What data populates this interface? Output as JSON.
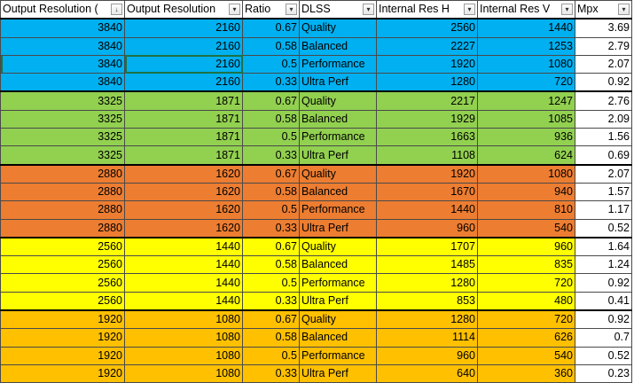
{
  "columns": [
    {
      "label": "Output Resolution (",
      "filter": "sort-descending-filter-icon",
      "glyph": "↓"
    },
    {
      "label": "Output Resolution",
      "filter": "filter-dropdown-icon",
      "glyph": "▾"
    },
    {
      "label": "Ratio",
      "filter": "filter-dropdown-icon",
      "glyph": "▾"
    },
    {
      "label": "DLSS",
      "filter": "filter-dropdown-icon",
      "glyph": "▾"
    },
    {
      "label": "Internal Res H",
      "filter": "filter-dropdown-icon",
      "glyph": "▾"
    },
    {
      "label": "Internal Res V",
      "filter": "filter-dropdown-icon",
      "glyph": "▾"
    },
    {
      "label": "Mpx",
      "filter": "filter-dropdown-icon",
      "glyph": "▾"
    }
  ],
  "colors": {
    "blue": "#00b0f0",
    "green": "#92d050",
    "dark_orange": "#ed7d31",
    "yellow": "#ffff00",
    "orange": "#ffc000",
    "mpx_bg": "#ffffff"
  },
  "rows": [
    {
      "color": "blue",
      "cells": [
        "3840",
        "2160",
        "0.67",
        "Quality",
        "2560",
        "1440",
        "3.69"
      ]
    },
    {
      "color": "blue",
      "cells": [
        "3840",
        "2160",
        "0.58",
        "Balanced",
        "2227",
        "1253",
        "2.79"
      ]
    },
    {
      "color": "blue",
      "cells": [
        "3840",
        "2160",
        "0.5",
        "Performance",
        "1920",
        "1080",
        "2.07"
      ],
      "selected_col": 1
    },
    {
      "color": "blue",
      "cells": [
        "3840",
        "2160",
        "0.33",
        "Ultra Perf",
        "1280",
        "720",
        "0.92"
      ]
    },
    {
      "color": "green",
      "cells": [
        "3325",
        "1871",
        "0.67",
        "Quality",
        "2217",
        "1247",
        "2.76"
      ]
    },
    {
      "color": "green",
      "cells": [
        "3325",
        "1871",
        "0.58",
        "Balanced",
        "1929",
        "1085",
        "2.09"
      ]
    },
    {
      "color": "green",
      "cells": [
        "3325",
        "1871",
        "0.5",
        "Performance",
        "1663",
        "936",
        "1.56"
      ]
    },
    {
      "color": "green",
      "cells": [
        "3325",
        "1871",
        "0.33",
        "Ultra Perf",
        "1108",
        "624",
        "0.69"
      ]
    },
    {
      "color": "dark_orange",
      "cells": [
        "2880",
        "1620",
        "0.67",
        "Quality",
        "1920",
        "1080",
        "2.07"
      ]
    },
    {
      "color": "dark_orange",
      "cells": [
        "2880",
        "1620",
        "0.58",
        "Balanced",
        "1670",
        "940",
        "1.57"
      ]
    },
    {
      "color": "dark_orange",
      "cells": [
        "2880",
        "1620",
        "0.5",
        "Performance",
        "1440",
        "810",
        "1.17"
      ]
    },
    {
      "color": "dark_orange",
      "cells": [
        "2880",
        "1620",
        "0.33",
        "Ultra Perf",
        "960",
        "540",
        "0.52"
      ]
    },
    {
      "color": "yellow",
      "cells": [
        "2560",
        "1440",
        "0.67",
        "Quality",
        "1707",
        "960",
        "1.64"
      ]
    },
    {
      "color": "yellow",
      "cells": [
        "2560",
        "1440",
        "0.58",
        "Balanced",
        "1485",
        "835",
        "1.24"
      ]
    },
    {
      "color": "yellow",
      "cells": [
        "2560",
        "1440",
        "0.5",
        "Performance",
        "1280",
        "720",
        "0.92"
      ]
    },
    {
      "color": "yellow",
      "cells": [
        "2560",
        "1440",
        "0.33",
        "Ultra Perf",
        "853",
        "480",
        "0.41"
      ]
    },
    {
      "color": "orange",
      "cells": [
        "1920",
        "1080",
        "0.67",
        "Quality",
        "1280",
        "720",
        "0.92"
      ]
    },
    {
      "color": "orange",
      "cells": [
        "1920",
        "1080",
        "0.58",
        "Balanced",
        "1114",
        "626",
        "0.7"
      ]
    },
    {
      "color": "orange",
      "cells": [
        "1920",
        "1080",
        "0.5",
        "Performance",
        "960",
        "540",
        "0.52"
      ]
    },
    {
      "color": "orange",
      "cells": [
        "1920",
        "1080",
        "0.33",
        "Ultra Perf",
        "640",
        "360",
        "0.23"
      ]
    }
  ]
}
